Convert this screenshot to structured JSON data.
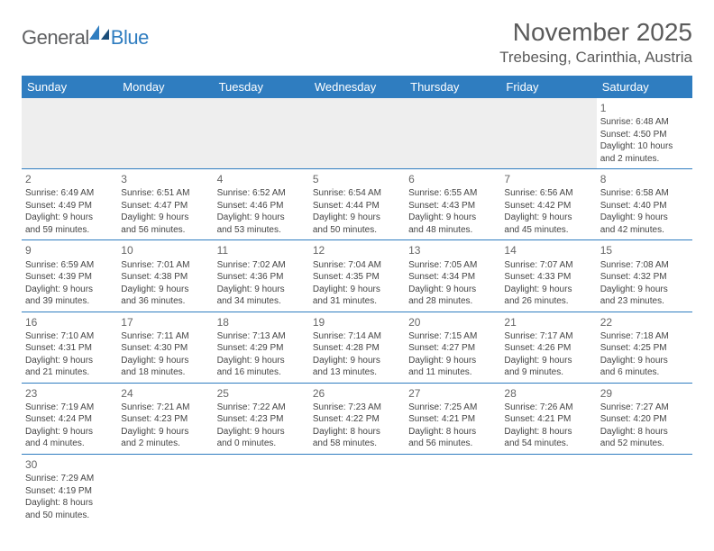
{
  "logo": {
    "text1": "General",
    "text2": "Blue"
  },
  "title": "November 2025",
  "location": "Trebesing, Carinthia, Austria",
  "colors": {
    "header_bg": "#2f7dc0",
    "header_fg": "#ffffff",
    "row_border": "#2f7dc0",
    "empty_bg": "#eeeeee",
    "text": "#444444",
    "title_color": "#5a5a5a"
  },
  "weekdays": [
    "Sunday",
    "Monday",
    "Tuesday",
    "Wednesday",
    "Thursday",
    "Friday",
    "Saturday"
  ],
  "weeks": [
    [
      null,
      null,
      null,
      null,
      null,
      null,
      {
        "n": "1",
        "sr": "Sunrise: 6:48 AM",
        "ss": "Sunset: 4:50 PM",
        "dl1": "Daylight: 10 hours",
        "dl2": "and 2 minutes."
      }
    ],
    [
      {
        "n": "2",
        "sr": "Sunrise: 6:49 AM",
        "ss": "Sunset: 4:49 PM",
        "dl1": "Daylight: 9 hours",
        "dl2": "and 59 minutes."
      },
      {
        "n": "3",
        "sr": "Sunrise: 6:51 AM",
        "ss": "Sunset: 4:47 PM",
        "dl1": "Daylight: 9 hours",
        "dl2": "and 56 minutes."
      },
      {
        "n": "4",
        "sr": "Sunrise: 6:52 AM",
        "ss": "Sunset: 4:46 PM",
        "dl1": "Daylight: 9 hours",
        "dl2": "and 53 minutes."
      },
      {
        "n": "5",
        "sr": "Sunrise: 6:54 AM",
        "ss": "Sunset: 4:44 PM",
        "dl1": "Daylight: 9 hours",
        "dl2": "and 50 minutes."
      },
      {
        "n": "6",
        "sr": "Sunrise: 6:55 AM",
        "ss": "Sunset: 4:43 PM",
        "dl1": "Daylight: 9 hours",
        "dl2": "and 48 minutes."
      },
      {
        "n": "7",
        "sr": "Sunrise: 6:56 AM",
        "ss": "Sunset: 4:42 PM",
        "dl1": "Daylight: 9 hours",
        "dl2": "and 45 minutes."
      },
      {
        "n": "8",
        "sr": "Sunrise: 6:58 AM",
        "ss": "Sunset: 4:40 PM",
        "dl1": "Daylight: 9 hours",
        "dl2": "and 42 minutes."
      }
    ],
    [
      {
        "n": "9",
        "sr": "Sunrise: 6:59 AM",
        "ss": "Sunset: 4:39 PM",
        "dl1": "Daylight: 9 hours",
        "dl2": "and 39 minutes."
      },
      {
        "n": "10",
        "sr": "Sunrise: 7:01 AM",
        "ss": "Sunset: 4:38 PM",
        "dl1": "Daylight: 9 hours",
        "dl2": "and 36 minutes."
      },
      {
        "n": "11",
        "sr": "Sunrise: 7:02 AM",
        "ss": "Sunset: 4:36 PM",
        "dl1": "Daylight: 9 hours",
        "dl2": "and 34 minutes."
      },
      {
        "n": "12",
        "sr": "Sunrise: 7:04 AM",
        "ss": "Sunset: 4:35 PM",
        "dl1": "Daylight: 9 hours",
        "dl2": "and 31 minutes."
      },
      {
        "n": "13",
        "sr": "Sunrise: 7:05 AM",
        "ss": "Sunset: 4:34 PM",
        "dl1": "Daylight: 9 hours",
        "dl2": "and 28 minutes."
      },
      {
        "n": "14",
        "sr": "Sunrise: 7:07 AM",
        "ss": "Sunset: 4:33 PM",
        "dl1": "Daylight: 9 hours",
        "dl2": "and 26 minutes."
      },
      {
        "n": "15",
        "sr": "Sunrise: 7:08 AM",
        "ss": "Sunset: 4:32 PM",
        "dl1": "Daylight: 9 hours",
        "dl2": "and 23 minutes."
      }
    ],
    [
      {
        "n": "16",
        "sr": "Sunrise: 7:10 AM",
        "ss": "Sunset: 4:31 PM",
        "dl1": "Daylight: 9 hours",
        "dl2": "and 21 minutes."
      },
      {
        "n": "17",
        "sr": "Sunrise: 7:11 AM",
        "ss": "Sunset: 4:30 PM",
        "dl1": "Daylight: 9 hours",
        "dl2": "and 18 minutes."
      },
      {
        "n": "18",
        "sr": "Sunrise: 7:13 AM",
        "ss": "Sunset: 4:29 PM",
        "dl1": "Daylight: 9 hours",
        "dl2": "and 16 minutes."
      },
      {
        "n": "19",
        "sr": "Sunrise: 7:14 AM",
        "ss": "Sunset: 4:28 PM",
        "dl1": "Daylight: 9 hours",
        "dl2": "and 13 minutes."
      },
      {
        "n": "20",
        "sr": "Sunrise: 7:15 AM",
        "ss": "Sunset: 4:27 PM",
        "dl1": "Daylight: 9 hours",
        "dl2": "and 11 minutes."
      },
      {
        "n": "21",
        "sr": "Sunrise: 7:17 AM",
        "ss": "Sunset: 4:26 PM",
        "dl1": "Daylight: 9 hours",
        "dl2": "and 9 minutes."
      },
      {
        "n": "22",
        "sr": "Sunrise: 7:18 AM",
        "ss": "Sunset: 4:25 PM",
        "dl1": "Daylight: 9 hours",
        "dl2": "and 6 minutes."
      }
    ],
    [
      {
        "n": "23",
        "sr": "Sunrise: 7:19 AM",
        "ss": "Sunset: 4:24 PM",
        "dl1": "Daylight: 9 hours",
        "dl2": "and 4 minutes."
      },
      {
        "n": "24",
        "sr": "Sunrise: 7:21 AM",
        "ss": "Sunset: 4:23 PM",
        "dl1": "Daylight: 9 hours",
        "dl2": "and 2 minutes."
      },
      {
        "n": "25",
        "sr": "Sunrise: 7:22 AM",
        "ss": "Sunset: 4:23 PM",
        "dl1": "Daylight: 9 hours",
        "dl2": "and 0 minutes."
      },
      {
        "n": "26",
        "sr": "Sunrise: 7:23 AM",
        "ss": "Sunset: 4:22 PM",
        "dl1": "Daylight: 8 hours",
        "dl2": "and 58 minutes."
      },
      {
        "n": "27",
        "sr": "Sunrise: 7:25 AM",
        "ss": "Sunset: 4:21 PM",
        "dl1": "Daylight: 8 hours",
        "dl2": "and 56 minutes."
      },
      {
        "n": "28",
        "sr": "Sunrise: 7:26 AM",
        "ss": "Sunset: 4:21 PM",
        "dl1": "Daylight: 8 hours",
        "dl2": "and 54 minutes."
      },
      {
        "n": "29",
        "sr": "Sunrise: 7:27 AM",
        "ss": "Sunset: 4:20 PM",
        "dl1": "Daylight: 8 hours",
        "dl2": "and 52 minutes."
      }
    ],
    [
      {
        "n": "30",
        "sr": "Sunrise: 7:29 AM",
        "ss": "Sunset: 4:19 PM",
        "dl1": "Daylight: 8 hours",
        "dl2": "and 50 minutes."
      },
      null,
      null,
      null,
      null,
      null,
      null
    ]
  ]
}
